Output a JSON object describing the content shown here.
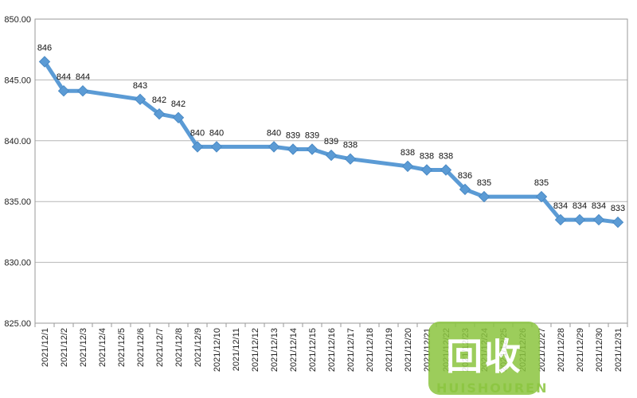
{
  "chart_data": {
    "type": "line",
    "title": "",
    "xlabel": "",
    "ylabel": "",
    "ylim": [
      825,
      850
    ],
    "y_ticks": [
      "825.00",
      "830.00",
      "835.00",
      "840.00",
      "845.00",
      "850.00"
    ],
    "grid": true,
    "line_color": "#5b9bd5",
    "categories": [
      "2021/12/1",
      "2021/12/2",
      "2021/12/3",
      "2021/12/4",
      "2021/12/5",
      "2021/12/6",
      "2021/12/7",
      "2021/12/8",
      "2021/12/9",
      "2021/12/10",
      "2021/12/11",
      "2021/12/12",
      "2021/12/13",
      "2021/12/14",
      "2021/12/15",
      "2021/12/16",
      "2021/12/17",
      "2021/12/18",
      "2021/12/19",
      "2021/12/20",
      "2021/12/21",
      "2021/12/22",
      "2021/12/23",
      "2021/12/24",
      "2021/12/25",
      "2021/12/26",
      "2021/12/27",
      "2021/12/28",
      "2021/12/29",
      "2021/12/30",
      "2021/12/31"
    ],
    "values": [
      846.5,
      844.1,
      844.1,
      null,
      null,
      843.4,
      842.2,
      841.9,
      839.5,
      839.5,
      null,
      null,
      839.5,
      839.3,
      839.3,
      838.8,
      838.5,
      null,
      null,
      837.9,
      837.6,
      837.6,
      836.0,
      835.4,
      null,
      null,
      835.4,
      833.5,
      833.5,
      833.5,
      833.3
    ],
    "data_labels": [
      "846",
      "844",
      "844",
      null,
      null,
      "843",
      "842",
      "842",
      "840",
      "840",
      null,
      null,
      "840",
      "839",
      "839",
      "839",
      "838",
      null,
      null,
      "838",
      "838",
      "838",
      "836",
      "835",
      null,
      null,
      "835",
      "834",
      "834",
      "834",
      "833"
    ]
  },
  "watermark": {
    "logo_text": "回收",
    "sub_text": "HUISHOUREN"
  }
}
